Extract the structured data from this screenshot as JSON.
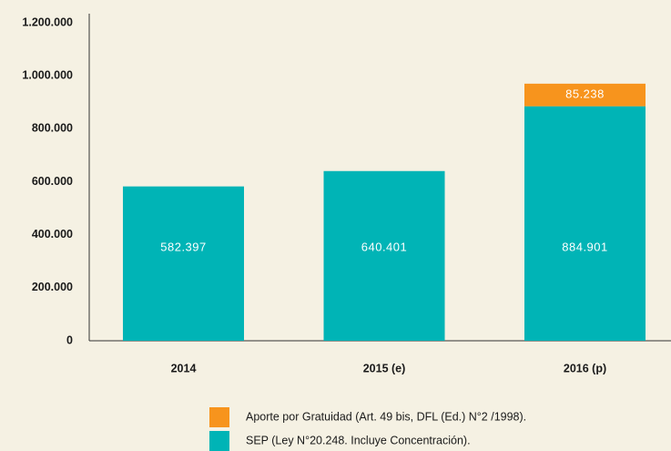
{
  "chart_data": {
    "type": "stacked_bar",
    "categories": [
      "2014",
      "2015 (e)",
      "2016 (p)"
    ],
    "series": [
      {
        "name": "SEP (Ley N°20.248. Incluye Concentración).",
        "color": "#00b4b6",
        "values": [
          582397,
          640401,
          884901
        ],
        "value_labels": [
          "582.397",
          "640.401",
          "884.901"
        ]
      },
      {
        "name": "Aporte por Gratuidad (Art. 49 bis, DFL (Ed.) N°2 /1998).",
        "color": "#f7941d",
        "values": [
          null,
          null,
          85238
        ],
        "value_labels": [
          null,
          null,
          "85.238"
        ]
      }
    ],
    "ylim": [
      0,
      1200000
    ],
    "yticks": [
      0,
      {
        "value": 200000,
        "label": "200.000"
      },
      {
        "value": 400000,
        "label": "400.000"
      },
      {
        "value": 600000,
        "label": "600.000"
      },
      {
        "value": 800000,
        "label": "800.000"
      },
      {
        "value": 1000000,
        "label": "1.000.000"
      },
      {
        "value": 1200000,
        "label": "1.200.000"
      }
    ],
    "grid": false
  }
}
